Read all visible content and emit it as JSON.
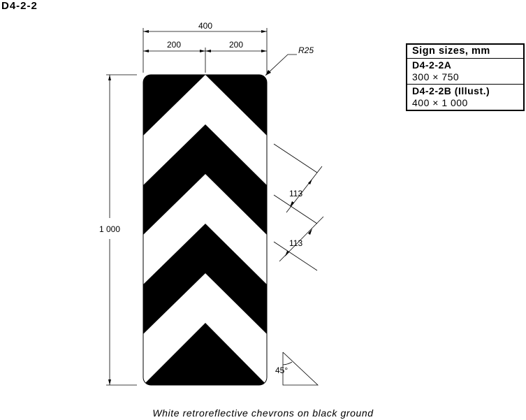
{
  "page_title": "D4-2-2",
  "dimensions": {
    "overall_width": "400",
    "half_width_left": "200",
    "half_width_right": "200",
    "corner_radius": "R25",
    "height": "1 000",
    "stripe_width_1": "113",
    "stripe_width_2": "113",
    "chevron_angle": "45°"
  },
  "size_table": {
    "header": "Sign sizes, mm",
    "rows": [
      {
        "code": "D4-2-2A",
        "size": "300 × 750"
      },
      {
        "code": "D4-2-2B (Illust.)",
        "size": "400 × 1 000"
      }
    ]
  },
  "caption": "White retroreflective chevrons on black ground",
  "colors": {
    "ground": "#000000",
    "chevrons": "#ffffff",
    "lines": "#000000"
  }
}
